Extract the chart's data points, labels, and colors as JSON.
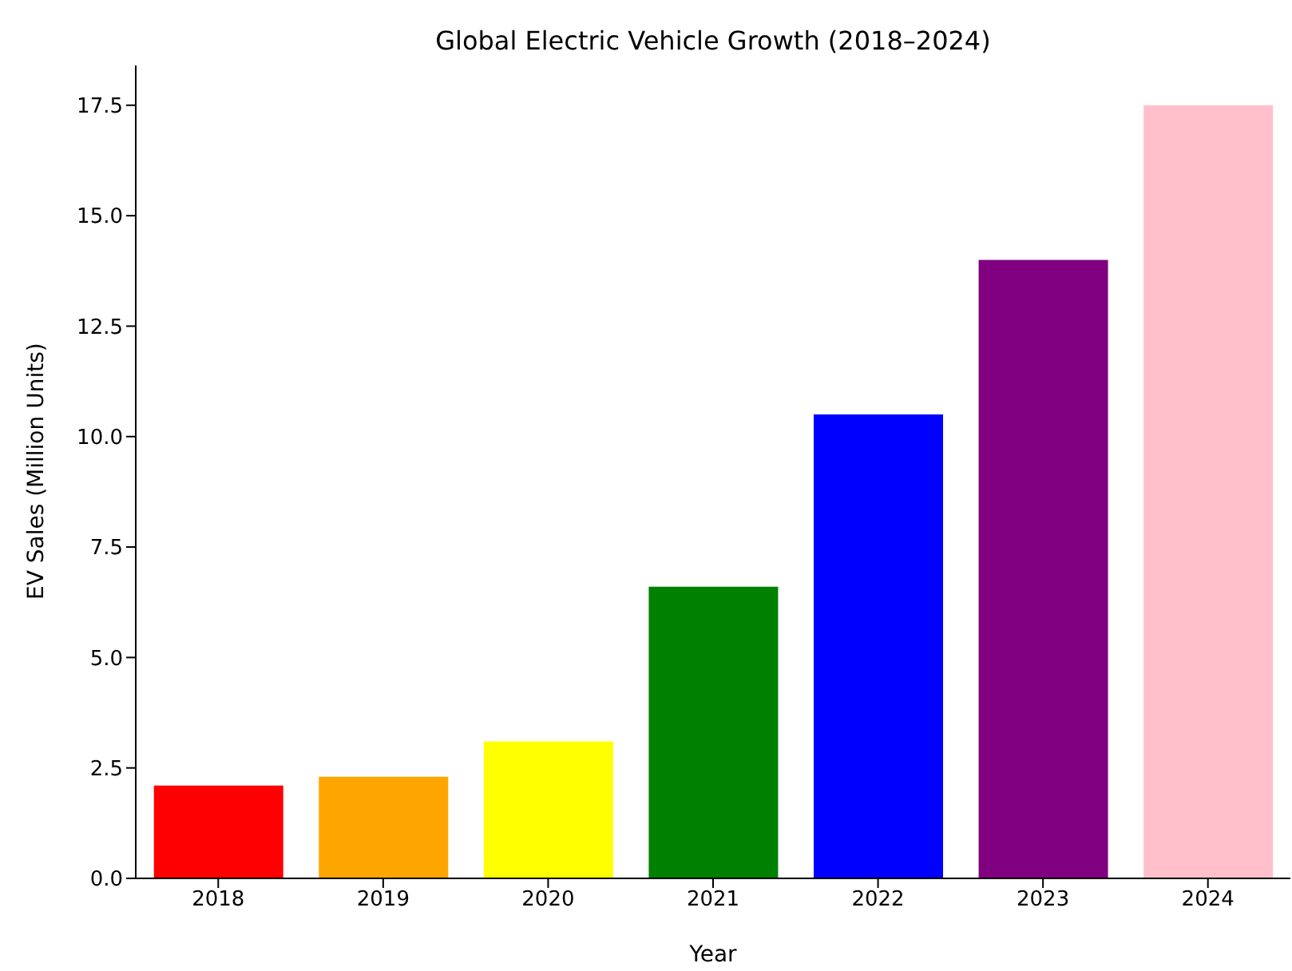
{
  "chart_data": {
    "type": "bar",
    "title": "Global Electric Vehicle Growth (2018–2024)",
    "xlabel": "Year",
    "ylabel": "EV Sales (Million Units)",
    "categories": [
      "2018",
      "2019",
      "2020",
      "2021",
      "2022",
      "2023",
      "2024"
    ],
    "values": [
      2.1,
      2.3,
      3.1,
      6.6,
      10.5,
      14.0,
      17.5
    ],
    "colors": [
      "#ff0000",
      "#ffa500",
      "#ffff00",
      "#008000",
      "#0000ff",
      "#800080",
      "#ffc0cb"
    ],
    "ylim": [
      0,
      18.4
    ],
    "yticks": [
      {
        "value": 0,
        "label": "0.0"
      },
      {
        "value": 2.5,
        "label": "2.5"
      },
      {
        "value": 5,
        "label": "5.0"
      },
      {
        "value": 7.5,
        "label": "7.5"
      },
      {
        "value": 10,
        "label": "10.0"
      },
      {
        "value": 12.5,
        "label": "12.5"
      },
      {
        "value": 15,
        "label": "15.0"
      },
      {
        "value": 17.5,
        "label": "17.5"
      }
    ],
    "grid": false,
    "legend": false
  }
}
